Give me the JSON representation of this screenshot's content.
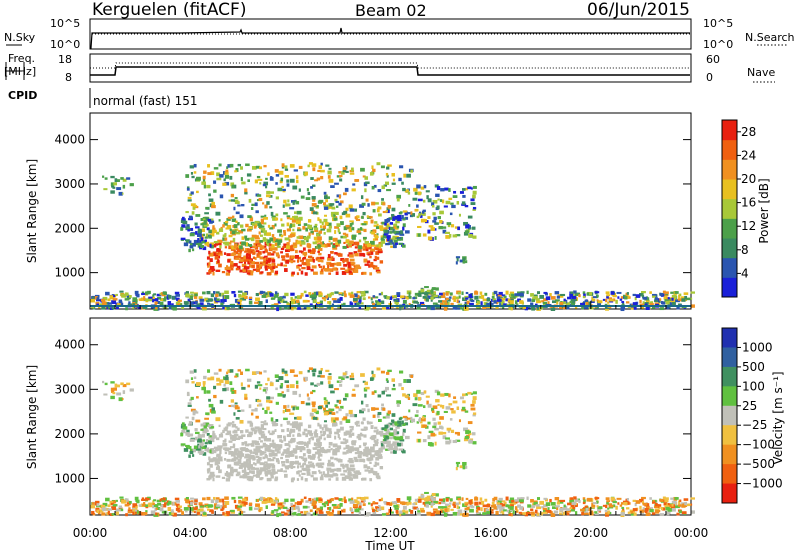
{
  "header": {
    "station": "Kerguelen (fitACF)",
    "beam": "Beam 02",
    "date": "06/Jun/2015"
  },
  "top_panels": {
    "nsky_label": "N.Sky",
    "nsearch_label": "N.Search",
    "noise_ticks": [
      "10^5",
      "10^0"
    ],
    "freq_label_1": "Freq.",
    "freq_label_2": "[MHz]",
    "freq_ticks": [
      "18",
      "8"
    ],
    "nave_label": "Nave",
    "nave_ticks": [
      "60",
      "0"
    ],
    "cpid_label": "CPID",
    "cpid_text": "normal (fast) 151"
  },
  "colors": {
    "power_scale": [
      "#1a20d8",
      "#2a55b0",
      "#3a8a60",
      "#4ca04a",
      "#a8c838",
      "#e8c020",
      "#f09020",
      "#f06010",
      "#e82010"
    ],
    "velocity_scale": [
      "#2030b0",
      "#3060a0",
      "#409060",
      "#60c040",
      "#c0c0b8",
      "#f0c040",
      "#f09020",
      "#f06010",
      "#e82010"
    ]
  },
  "chart_data": [
    {
      "type": "heatmap",
      "panel": "power",
      "ylabel": "Slant Range [km]",
      "yticks": [
        1000,
        2000,
        3000,
        4000
      ],
      "ylim": [
        180,
        4600
      ],
      "xlim": [
        0,
        24
      ],
      "colorbar_label": "Power [dB]",
      "colorbar_ticks": [
        "4",
        "8",
        "12",
        "16",
        "20",
        "24",
        "28"
      ],
      "colorbar_range": [
        0,
        30
      ]
    },
    {
      "type": "heatmap",
      "panel": "velocity",
      "ylabel": "Slant Range [km]",
      "yticks": [
        1000,
        2000,
        3000,
        4000
      ],
      "ylim": [
        180,
        4600
      ],
      "xlim": [
        0,
        24
      ],
      "xlabel": "Time UT",
      "xticks": [
        "00:00",
        "04:00",
        "08:00",
        "12:00",
        "16:00",
        "20:00",
        "00:00"
      ],
      "colorbar_label": "Velocity [m s⁻¹]",
      "colorbar_ticks": [
        "1000",
        "500",
        "100",
        "25",
        "−25",
        "−100",
        "−500",
        "−1000"
      ]
    }
  ]
}
